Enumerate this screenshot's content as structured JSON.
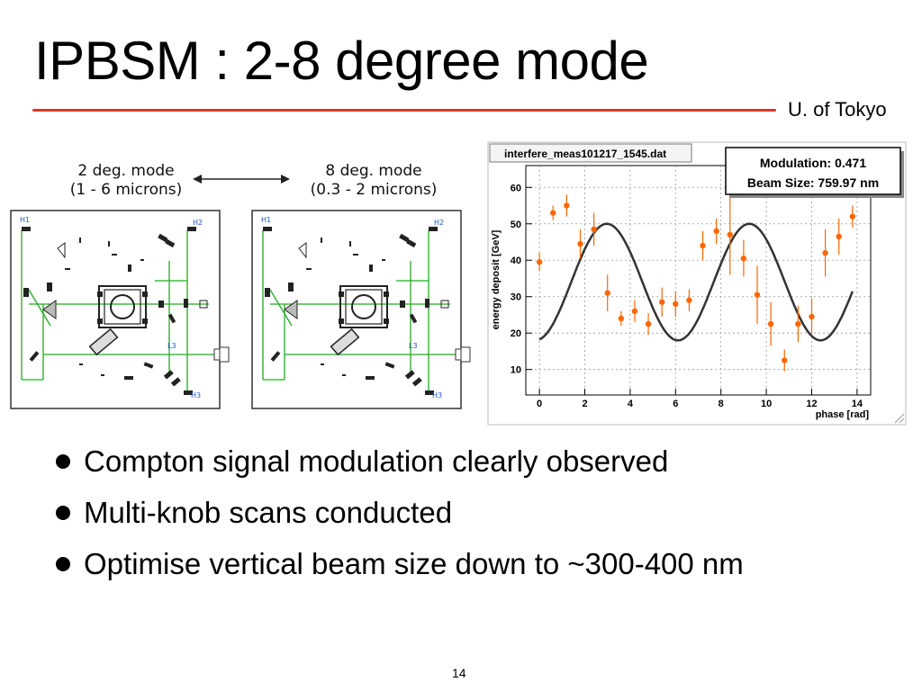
{
  "slide": {
    "title": "IPBSM : 2-8 degree mode",
    "affiliation": "U. of Tokyo",
    "page_number": "14",
    "colors": {
      "title_rule": "#e0352b",
      "data_points": "#ff6600",
      "fit_line": "#333333",
      "beam_path": "#22aa22",
      "labels": "#2255cc"
    }
  },
  "diagram": {
    "left_label_1": "2 deg. mode",
    "left_label_2": "(1 - 6 microns)",
    "right_label_1": "8 deg. mode",
    "right_label_2": "(0.3 - 2 microns)",
    "arrow_icon": "double-arrow-icon",
    "h1": "H1",
    "h2": "H2",
    "h3": "H3",
    "l3": "L3"
  },
  "chart_data": {
    "type": "scatter",
    "title": "interfere_meas101217_1545.dat",
    "xlabel": "phase [rad]",
    "ylabel": "energy deposit [GeV]",
    "xlim": [
      -0.6,
      14.6
    ],
    "ylim": [
      3,
      66
    ],
    "x_ticks": [
      0,
      2,
      4,
      6,
      8,
      10,
      12,
      14
    ],
    "y_ticks": [
      10,
      20,
      30,
      40,
      50,
      60
    ],
    "grid": true,
    "stats_box": {
      "modulation": "Modulation: 0.471",
      "beam_size": "Beam Size: 759.97 nm"
    },
    "points": [
      {
        "x": 0.0,
        "y": 39.5,
        "err": 2.5
      },
      {
        "x": 0.6,
        "y": 53.0,
        "err": 2.0
      },
      {
        "x": 1.2,
        "y": 55.0,
        "err": 3.0
      },
      {
        "x": 1.8,
        "y": 44.5,
        "err": 4.0
      },
      {
        "x": 2.4,
        "y": 48.5,
        "err": 4.5
      },
      {
        "x": 3.0,
        "y": 31.0,
        "err": 5.0
      },
      {
        "x": 3.6,
        "y": 24.0,
        "err": 2.0
      },
      {
        "x": 4.2,
        "y": 26.0,
        "err": 3.0
      },
      {
        "x": 4.8,
        "y": 22.5,
        "err": 3.0
      },
      {
        "x": 5.4,
        "y": 28.5,
        "err": 4.0
      },
      {
        "x": 6.0,
        "y": 28.0,
        "err": 3.5
      },
      {
        "x": 6.6,
        "y": 29.0,
        "err": 3.0
      },
      {
        "x": 7.2,
        "y": 44.0,
        "err": 4.0
      },
      {
        "x": 7.8,
        "y": 48.0,
        "err": 3.5
      },
      {
        "x": 8.4,
        "y": 47.0,
        "err": 11.0
      },
      {
        "x": 9.0,
        "y": 40.5,
        "err": 5.0
      },
      {
        "x": 9.6,
        "y": 30.5,
        "err": 8.0
      },
      {
        "x": 10.2,
        "y": 22.5,
        "err": 6.0
      },
      {
        "x": 10.8,
        "y": 12.5,
        "err": 3.0
      },
      {
        "x": 11.4,
        "y": 22.5,
        "err": 5.0
      },
      {
        "x": 12.0,
        "y": 24.5,
        "err": 5.0
      },
      {
        "x": 12.6,
        "y": 42.0,
        "err": 6.5
      },
      {
        "x": 13.2,
        "y": 46.5,
        "err": 5.0
      },
      {
        "x": 13.8,
        "y": 52.0,
        "err": 3.0
      }
    ],
    "fit": {
      "offset": 34.0,
      "amplitude": 16.0,
      "period": 6.28,
      "phase_offset": 1.4,
      "x_start": 0.0,
      "x_end": 13.8
    }
  },
  "bullets": [
    "Compton signal modulation clearly observed",
    "Multi-knob scans conducted",
    "Optimise vertical beam size down to ~300-400 nm"
  ]
}
